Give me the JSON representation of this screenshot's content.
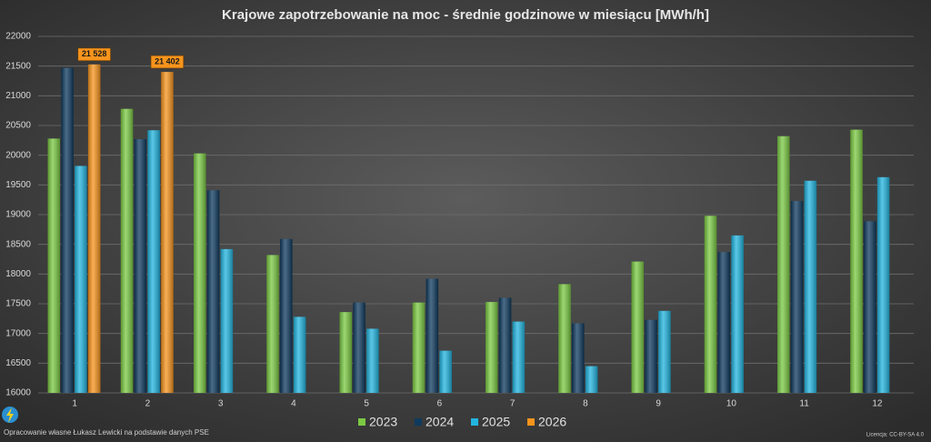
{
  "chart_data": {
    "type": "bar",
    "title": "Krajowe zapotrzebowanie na moc - średnie godzinowe w miesiącu [MWh/h]",
    "categories": [
      "1",
      "2",
      "3",
      "4",
      "5",
      "6",
      "7",
      "8",
      "9",
      "10",
      "11",
      "12"
    ],
    "series": [
      {
        "name": "2023",
        "color": "#7ac943",
        "values": [
          20280,
          20780,
          20030,
          18320,
          17360,
          17520,
          17530,
          17830,
          18210,
          18980,
          20320,
          20430
        ]
      },
      {
        "name": "2024",
        "color": "#0f3a5e",
        "values": [
          21470,
          20270,
          19410,
          18590,
          17520,
          17920,
          17600,
          17170,
          17230,
          18370,
          19230,
          18890
        ]
      },
      {
        "name": "2025",
        "color": "#22b4df",
        "values": [
          19820,
          20420,
          18420,
          17280,
          17080,
          16710,
          17200,
          16450,
          17380,
          18650,
          19570,
          19630
        ]
      },
      {
        "name": "2026",
        "color": "#f7941d",
        "values": [
          21528,
          21402,
          null,
          null,
          null,
          null,
          null,
          null,
          null,
          null,
          null,
          null
        ],
        "value_labels": [
          "21 528",
          "21 402",
          null,
          null,
          null,
          null,
          null,
          null,
          null,
          null,
          null,
          null
        ]
      }
    ],
    "ylim": [
      16000,
      22000
    ],
    "yticks": [
      16000,
      16500,
      17000,
      17500,
      18000,
      18500,
      19000,
      19500,
      20000,
      20500,
      21000,
      21500,
      22000
    ],
    "grid": true,
    "source": "Opracowanie własne Łukasz Lewicki na podstawie danych PSE",
    "license": "Licencja: CC-BY-SA 4.0"
  }
}
